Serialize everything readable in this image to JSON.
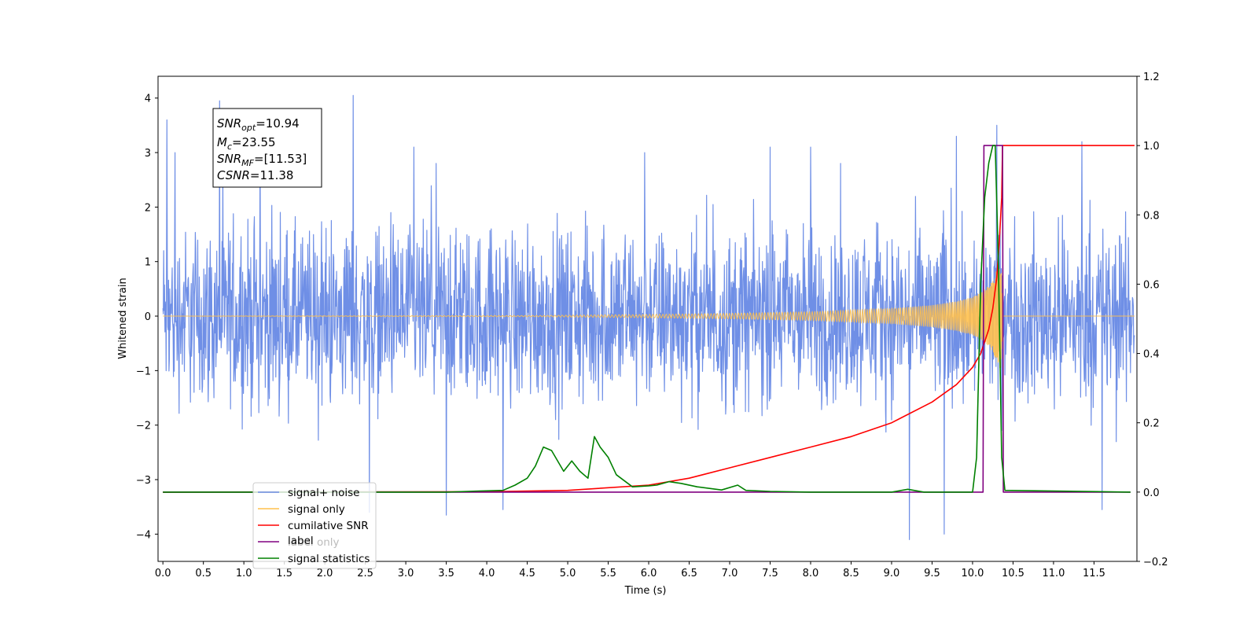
{
  "chart_data": {
    "type": "line",
    "title": "",
    "xlabel": "Time (s)",
    "ylabel": "Whitened strain",
    "ylabel_right": "",
    "xlim": [
      -0.06,
      12.03
    ],
    "ylim_left": [
      -4.5,
      4.4
    ],
    "ylim_right": [
      -0.2,
      1.2
    ],
    "x_ticks": [
      0.0,
      0.5,
      1.0,
      1.5,
      2.0,
      2.5,
      3.0,
      3.5,
      4.0,
      4.5,
      5.0,
      5.5,
      6.0,
      6.5,
      7.0,
      7.5,
      8.0,
      8.5,
      9.0,
      9.5,
      10.0,
      10.5,
      11.0,
      11.5
    ],
    "x_tick_labels": [
      "0.0",
      "0.5",
      "1.0",
      "1.5",
      "2.0",
      "2.5",
      "3.0",
      "3.5",
      "4.0",
      "4.5",
      "5.0",
      "5.5",
      "6.0",
      "6.5",
      "7.0",
      "7.5",
      "8.0",
      "8.5",
      "9.0",
      "9.5",
      "10.0",
      "10.5",
      "11.0",
      "11.5"
    ],
    "y_ticks_left": [
      -4,
      -3,
      -2,
      -1,
      0,
      1,
      2,
      3,
      4
    ],
    "y_tick_labels_left": [
      "−4",
      "−3",
      "−2",
      "−1",
      "0",
      "1",
      "2",
      "3",
      "4"
    ],
    "y_ticks_right": [
      -0.2,
      0.0,
      0.2,
      0.4,
      0.6,
      0.8,
      1.0,
      1.2
    ],
    "y_tick_labels_right": [
      "−0.2",
      "0.0",
      "0.2",
      "0.4",
      "0.6",
      "0.8",
      "1.0",
      "1.2"
    ],
    "grid": false,
    "legend_position": "lower-left",
    "legend": [
      {
        "label": "signal+ noise",
        "color": "#6f8fe6"
      },
      {
        "label": "signal only",
        "color": "#ffc04d"
      },
      {
        "label": "cumilative SNR",
        "color": "#ff0000"
      },
      {
        "label": "label",
        "color": "#800080"
      },
      {
        "label": "label only",
        "color": "#bbbbbb"
      },
      {
        "label": "signal statistics",
        "color": "#008000"
      }
    ],
    "annotation": {
      "lines": [
        {
          "sym": "SNR",
          "sub": "opt",
          "value": "=10.94"
        },
        {
          "sym": "M",
          "sub": "c",
          "value": "=23.55"
        },
        {
          "sym": "SNR",
          "sub": "MF",
          "value": "=[11.53]"
        },
        {
          "sym": "CSNR",
          "sub": "",
          "value": "=11.38"
        }
      ]
    },
    "series": [
      {
        "name": "signal+ noise",
        "axis": "left",
        "color": "#6f8fe6",
        "x_range": [
          0.0,
          12.0
        ],
        "envelope": {
          "typical_max": 2.1,
          "typical_min": -2.2,
          "peak_max": 4.05,
          "peak_min": -4.1
        },
        "spikes": [
          [
            0.05,
            3.6
          ],
          [
            0.15,
            3.0
          ],
          [
            0.7,
            3.95
          ],
          [
            2.35,
            4.05
          ],
          [
            3.5,
            -3.65
          ],
          [
            2.55,
            -3.6
          ],
          [
            4.2,
            -3.55
          ],
          [
            9.22,
            -4.1
          ],
          [
            9.65,
            -4.0
          ],
          [
            11.6,
            -3.55
          ],
          [
            10.3,
            3.5
          ],
          [
            9.8,
            3.3
          ],
          [
            11.35,
            3.2
          ],
          [
            7.5,
            3.1
          ],
          [
            1.2,
            3.1
          ],
          [
            3.1,
            3.1
          ],
          [
            5.95,
            3.0
          ],
          [
            8.0,
            3.1
          ]
        ]
      },
      {
        "name": "signal only",
        "axis": "left",
        "color": "#ffc04d",
        "x": [
          0.0,
          4.5,
          6.0,
          7.0,
          8.0,
          9.0,
          9.5,
          9.8,
          10.0,
          10.15,
          10.25,
          10.3,
          10.35,
          10.38,
          12.0
        ],
        "amplitude": [
          0.0,
          0.01,
          0.03,
          0.05,
          0.08,
          0.14,
          0.2,
          0.27,
          0.35,
          0.48,
          0.65,
          0.85,
          1.0,
          0.0,
          0.0
        ]
      },
      {
        "name": "cumilative SNR",
        "axis": "right",
        "color": "#ff0000",
        "x": [
          0.0,
          4.0,
          5.0,
          6.0,
          6.5,
          7.0,
          7.5,
          8.0,
          8.5,
          9.0,
          9.5,
          9.8,
          10.0,
          10.1,
          10.2,
          10.25,
          10.3,
          10.33,
          10.36,
          10.37,
          12.0
        ],
        "y": [
          0.0,
          0.001,
          0.005,
          0.02,
          0.04,
          0.07,
          0.1,
          0.13,
          0.16,
          0.2,
          0.26,
          0.31,
          0.36,
          0.4,
          0.47,
          0.53,
          0.62,
          0.72,
          0.85,
          1.0,
          1.0
        ]
      },
      {
        "name": "label",
        "axis": "right",
        "color": "#800080",
        "x": [
          0.0,
          10.13,
          10.14,
          10.37,
          10.38,
          11.95
        ],
        "y": [
          0.0,
          0.0,
          1.0,
          1.0,
          0.0,
          0.0
        ]
      },
      {
        "name": "signal statistics",
        "axis": "right",
        "color": "#008000",
        "x": [
          0.0,
          3.5,
          3.9,
          4.2,
          4.35,
          4.5,
          4.6,
          4.7,
          4.8,
          4.95,
          5.05,
          5.15,
          5.25,
          5.33,
          5.4,
          5.5,
          5.6,
          5.8,
          6.0,
          6.1,
          6.25,
          6.4,
          6.6,
          6.9,
          7.1,
          7.2,
          7.5,
          8.0,
          9.0,
          9.2,
          9.4,
          10.0,
          10.05,
          10.1,
          10.15,
          10.2,
          10.25,
          10.28,
          10.32,
          10.36,
          10.4,
          11.95
        ],
        "y": [
          0.0,
          0.0,
          0.003,
          0.005,
          0.02,
          0.04,
          0.075,
          0.13,
          0.12,
          0.06,
          0.09,
          0.06,
          0.04,
          0.16,
          0.13,
          0.1,
          0.05,
          0.015,
          0.018,
          0.02,
          0.03,
          0.025,
          0.015,
          0.006,
          0.02,
          0.005,
          0.002,
          0.0,
          0.0,
          0.008,
          0.0,
          0.0,
          0.1,
          0.6,
          0.85,
          0.95,
          1.0,
          1.0,
          0.65,
          0.1,
          0.005,
          0.0
        ]
      }
    ]
  }
}
